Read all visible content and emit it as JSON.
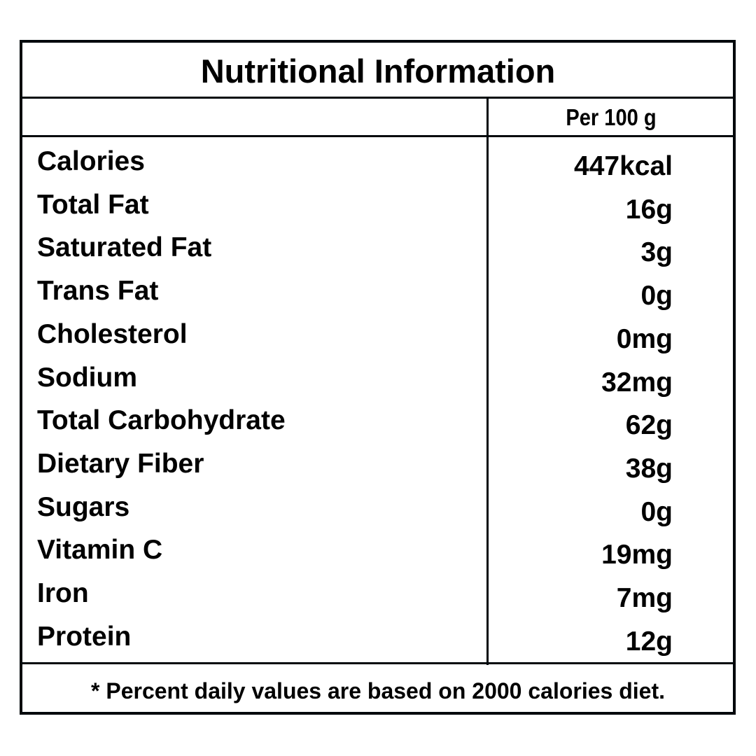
{
  "title": "Nutritional Information",
  "column_header": "Per 100 g",
  "rows": [
    {
      "label": "Calories",
      "value": "447kcal"
    },
    {
      "label": "Total Fat",
      "value": "16g"
    },
    {
      "label": "Saturated Fat",
      "value": "3g"
    },
    {
      "label": "Trans Fat",
      "value": "0g"
    },
    {
      "label": "Cholesterol",
      "value": "0mg"
    },
    {
      "label": "Sodium",
      "value": "32mg"
    },
    {
      "label": "Total Carbohydrate",
      "value": "62g"
    },
    {
      "label": "Dietary Fiber",
      "value": "38g"
    },
    {
      "label": "Sugars",
      "value": "0g"
    },
    {
      "label": "Vitamin C",
      "value": "19mg"
    },
    {
      "label": "Iron",
      "value": "7mg"
    },
    {
      "label": "Protein",
      "value": "12g"
    }
  ],
  "footnote": "*  Percent daily values are based on 2000 calories diet."
}
